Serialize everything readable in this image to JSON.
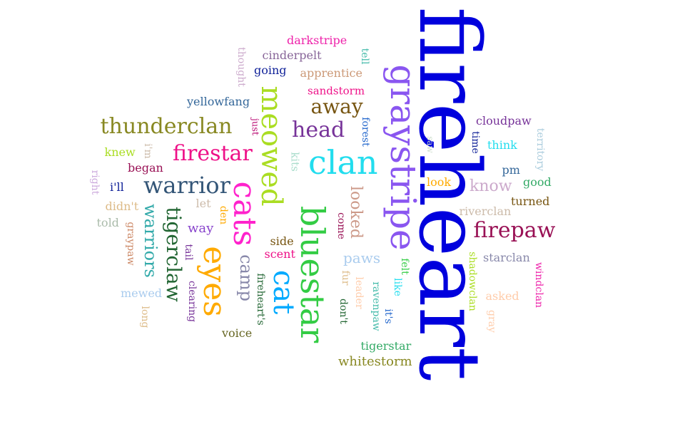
{
  "words": [
    {
      "text": "fireheart",
      "color": "#0000dd",
      "weight": 100,
      "rotation": 90
    },
    {
      "text": "graystripe",
      "color": "#8a56f0",
      "weight": 42,
      "rotation": 90
    },
    {
      "text": "bluestar",
      "color": "#33cc44",
      "weight": 40,
      "rotation": 90
    },
    {
      "text": "cats",
      "color": "#ff22cc",
      "weight": 38,
      "rotation": 90
    },
    {
      "text": "eyes",
      "color": "#ffaa00",
      "weight": 38,
      "rotation": 90
    },
    {
      "text": "meowed",
      "color": "#aadd22",
      "weight": 36,
      "rotation": 90
    },
    {
      "text": "clan",
      "color": "#22ddee",
      "weight": 36,
      "rotation": 0
    },
    {
      "text": "cat",
      "color": "#00aaff",
      "weight": 36,
      "rotation": 90
    },
    {
      "text": "warrior",
      "color": "#335577",
      "weight": 30,
      "rotation": 0
    },
    {
      "text": "firestar",
      "color": "#ee1188",
      "weight": 28,
      "rotation": 0
    },
    {
      "text": "thunderclan",
      "color": "#888822",
      "weight": 28,
      "rotation": 0
    },
    {
      "text": "firepaw",
      "color": "#991155",
      "weight": 26,
      "rotation": 0
    },
    {
      "text": "head",
      "color": "#773399",
      "weight": 26,
      "rotation": 0
    },
    {
      "text": "away",
      "color": "#775511",
      "weight": 26,
      "rotation": 0
    },
    {
      "text": "tigerclaw",
      "color": "#226633",
      "weight": 26,
      "rotation": 90
    },
    {
      "text": "warriors",
      "color": "#33aaaa",
      "weight": 24,
      "rotation": 90
    },
    {
      "text": "camp",
      "color": "#8888aa",
      "weight": 22,
      "rotation": 90
    },
    {
      "text": "looked",
      "color": "#cc9988",
      "weight": 20,
      "rotation": 90
    },
    {
      "text": "know",
      "color": "#ccaacc",
      "weight": 20,
      "rotation": 0
    },
    {
      "text": "paws",
      "color": "#aaccee",
      "weight": 18,
      "rotation": 0
    },
    {
      "text": "yellowfang",
      "color": "#336699",
      "weight": 14,
      "rotation": 0
    },
    {
      "text": "cloudpaw",
      "color": "#773399",
      "weight": 14,
      "rotation": 0
    },
    {
      "text": "sandstorm",
      "color": "#ee1188",
      "weight": 12,
      "rotation": 0
    },
    {
      "text": "apprentice",
      "color": "#cc9977",
      "weight": 14,
      "rotation": 0
    },
    {
      "text": "cinderpelt",
      "color": "#886699",
      "weight": 14,
      "rotation": 0
    },
    {
      "text": "darkstripe",
      "color": "#ee22aa",
      "weight": 14,
      "rotation": 0
    },
    {
      "text": "going",
      "color": "#112299",
      "weight": 14,
      "rotation": 0
    },
    {
      "text": "thought",
      "color": "#ccaacc",
      "weight": 12,
      "rotation": 90
    },
    {
      "text": "tell",
      "color": "#44bbaa",
      "weight": 12,
      "rotation": 90
    },
    {
      "text": "just",
      "color": "#bb1177",
      "weight": 12,
      "rotation": 90
    },
    {
      "text": "forest",
      "color": "#2266cc",
      "weight": 12,
      "rotation": 90
    },
    {
      "text": "kits",
      "color": "#aaddcc",
      "weight": 14,
      "rotation": 90
    },
    {
      "text": "knew",
      "color": "#aadd22",
      "weight": 14,
      "rotation": 0
    },
    {
      "text": "i'm",
      "color": "#ccbbaa",
      "weight": 12,
      "rotation": 90
    },
    {
      "text": "began",
      "color": "#991155",
      "weight": 14,
      "rotation": 0
    },
    {
      "text": "right",
      "color": "#ccaadd",
      "weight": 12,
      "rotation": 90
    },
    {
      "text": "i'll",
      "color": "#112299",
      "weight": 14,
      "rotation": 0
    },
    {
      "text": "didn't",
      "color": "#ddbb88",
      "weight": 14,
      "rotation": 0
    },
    {
      "text": "let",
      "color": "#ccbbaa",
      "weight": 14,
      "rotation": 0
    },
    {
      "text": "told",
      "color": "#aabbaa",
      "weight": 14,
      "rotation": 0
    },
    {
      "text": "graypaw",
      "color": "#cc8866",
      "weight": 12,
      "rotation": 90
    },
    {
      "text": "way",
      "color": "#8844cc",
      "weight": 16,
      "rotation": 0
    },
    {
      "text": "den",
      "color": "#ffaa00",
      "weight": 12,
      "rotation": 90
    },
    {
      "text": "tail",
      "color": "#773399",
      "weight": 12,
      "rotation": 90
    },
    {
      "text": "clearing",
      "color": "#773399",
      "weight": 12,
      "rotation": 90
    },
    {
      "text": "mewed",
      "color": "#aaccee",
      "weight": 14,
      "rotation": 0
    },
    {
      "text": "long",
      "color": "#ddbb88",
      "weight": 12,
      "rotation": 90
    },
    {
      "text": "voice",
      "color": "#666622",
      "weight": 14,
      "rotation": 0
    },
    {
      "text": "fireheart's",
      "color": "#226633",
      "weight": 12,
      "rotation": 90
    },
    {
      "text": "side",
      "color": "#775511",
      "weight": 14,
      "rotation": 0
    },
    {
      "text": "scent",
      "color": "#ee1188",
      "weight": 14,
      "rotation": 0
    },
    {
      "text": "come",
      "color": "#991155",
      "weight": 12,
      "rotation": 90
    },
    {
      "text": "fur",
      "color": "#ddbb88",
      "weight": 12,
      "rotation": 90
    },
    {
      "text": "leader",
      "color": "#ffccaa",
      "weight": 12,
      "rotation": 90
    },
    {
      "text": "don't",
      "color": "#226633",
      "weight": 12,
      "rotation": 90
    },
    {
      "text": "ravenpaw",
      "color": "#44bbaa",
      "weight": 12,
      "rotation": 90
    },
    {
      "text": "it's",
      "color": "#2266cc",
      "weight": 12,
      "rotation": 90
    },
    {
      "text": "like",
      "color": "#22ddee",
      "weight": 12,
      "rotation": 90
    },
    {
      "text": "felt",
      "color": "#33cc44",
      "weight": 12,
      "rotation": 90
    },
    {
      "text": "tigerstar",
      "color": "#33aa66",
      "weight": 14,
      "rotation": 0
    },
    {
      "text": "whitestorm",
      "color": "#888822",
      "weight": 16,
      "rotation": 0
    },
    {
      "text": "saw",
      "color": "#ccddcc",
      "weight": 12,
      "rotation": 90
    },
    {
      "text": "time",
      "color": "#112299",
      "weight": 12,
      "rotation": 90
    },
    {
      "text": "think",
      "color": "#22ddee",
      "weight": 14,
      "rotation": 0
    },
    {
      "text": "territory",
      "color": "#aaccdd",
      "weight": 12,
      "rotation": 90
    },
    {
      "text": "look",
      "color": "#ffaa00",
      "weight": 14,
      "rotation": 0
    },
    {
      "text": "pm",
      "color": "#336699",
      "weight": 14,
      "rotation": 0
    },
    {
      "text": "good",
      "color": "#33aa66",
      "weight": 14,
      "rotation": 0
    },
    {
      "text": "turned",
      "color": "#775511",
      "weight": 14,
      "rotation": 0
    },
    {
      "text": "riverclan",
      "color": "#ccbbaa",
      "weight": 14,
      "rotation": 0
    },
    {
      "text": "shadowclan",
      "color": "#aadd22",
      "weight": 12,
      "rotation": 90
    },
    {
      "text": "starclan",
      "color": "#8888aa",
      "weight": 14,
      "rotation": 0
    },
    {
      "text": "windclan",
      "color": "#ee22aa",
      "weight": 12,
      "rotation": 90
    },
    {
      "text": "asked",
      "color": "#ffccaa",
      "weight": 14,
      "rotation": 0
    },
    {
      "text": "gray",
      "color": "#ffccaa",
      "weight": 12,
      "rotation": 90
    }
  ]
}
